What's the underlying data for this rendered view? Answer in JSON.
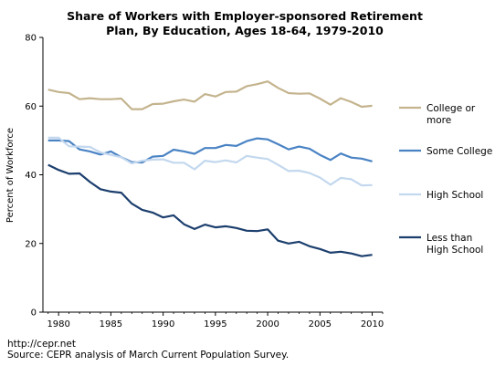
{
  "chart_data": {
    "type": "line",
    "title_lines": [
      "Share of Workers with Employer-sponsored Retirement",
      "Plan, By Education, Ages 18-64, 1979-2010"
    ],
    "ylabel": "Percent of Workforce",
    "xlabel": "",
    "ylim": [
      0,
      80
    ],
    "yticks": [
      0,
      20,
      40,
      60,
      80
    ],
    "xlim": [
      1978.5,
      2011
    ],
    "xticks": [
      1980,
      1985,
      1990,
      1995,
      2000,
      2005,
      2010
    ],
    "grid": false,
    "legend_position": "right",
    "x": [
      1979,
      1980,
      1981,
      1982,
      1983,
      1984,
      1985,
      1986,
      1987,
      1988,
      1989,
      1990,
      1991,
      1992,
      1993,
      1994,
      1995,
      1996,
      1997,
      1998,
      1999,
      2000,
      2001,
      2002,
      2003,
      2004,
      2005,
      2006,
      2007,
      2008,
      2009,
      2010
    ],
    "series": [
      {
        "name": "College or more",
        "legend_lines": [
          "College or",
          "more"
        ],
        "color": "#c4b48e",
        "values": [
          64.8,
          64.1,
          63.8,
          62.0,
          62.3,
          62.0,
          62.0,
          62.2,
          59.1,
          59.1,
          60.6,
          60.7,
          61.4,
          61.9,
          61.3,
          63.5,
          62.8,
          64.1,
          64.2,
          65.8,
          66.4,
          67.2,
          65.3,
          63.8,
          63.6,
          63.7,
          62.2,
          60.4,
          62.3,
          61.2,
          59.8,
          60.1
        ]
      },
      {
        "name": "Some College",
        "legend_lines": [
          "Some College"
        ],
        "color": "#4a83c4",
        "values": [
          50.0,
          50.0,
          49.8,
          47.4,
          46.8,
          45.9,
          46.8,
          45.1,
          43.7,
          43.6,
          45.3,
          45.5,
          47.3,
          46.8,
          46.1,
          47.8,
          47.8,
          48.7,
          48.4,
          49.8,
          50.6,
          50.3,
          48.9,
          47.4,
          48.2,
          47.6,
          45.8,
          44.3,
          46.2,
          45.0,
          44.7,
          43.9
        ]
      },
      {
        "name": "High School",
        "legend_lines": [
          "High School"
        ],
        "color": "#c3d8ee",
        "values": [
          50.8,
          50.8,
          48.3,
          48.2,
          48.1,
          46.5,
          45.8,
          45.1,
          43.3,
          44.1,
          44.4,
          44.5,
          43.5,
          43.5,
          41.6,
          44.1,
          43.7,
          44.2,
          43.6,
          45.5,
          45.0,
          44.6,
          42.9,
          41.1,
          41.2,
          40.5,
          39.2,
          37.1,
          39.1,
          38.7,
          36.9,
          37.0
        ]
      },
      {
        "name": "Less than High School",
        "legend_lines": [
          "Less than",
          "High School"
        ],
        "color": "#1c3f6e",
        "values": [
          42.9,
          41.4,
          40.3,
          40.4,
          37.9,
          35.8,
          35.1,
          34.8,
          31.6,
          29.8,
          29.0,
          27.6,
          28.2,
          25.6,
          24.2,
          25.5,
          24.7,
          25.0,
          24.5,
          23.7,
          23.6,
          24.1,
          20.8,
          20.0,
          20.5,
          19.2,
          18.4,
          17.3,
          17.6,
          17.1,
          16.3,
          16.7
        ]
      }
    ]
  },
  "footer": {
    "url": "http://cepr.net",
    "source": "Source: CEPR analysis of March Current Population Survey."
  }
}
